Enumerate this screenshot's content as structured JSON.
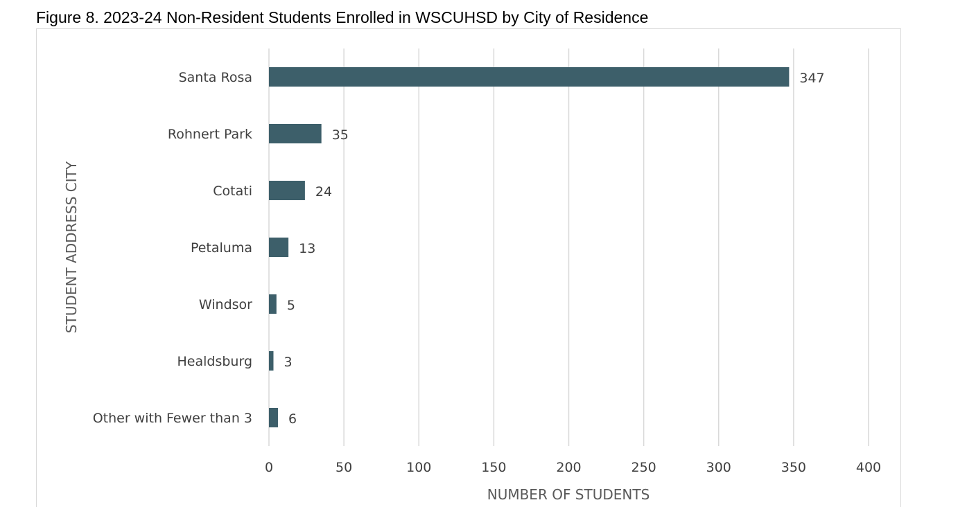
{
  "figure": {
    "title": "Figure 8. 2023-24 Non-Resident Students Enrolled in WSCUHSD by City of Residence"
  },
  "colors": {
    "bar": "#3d5f6a",
    "gridline": "#d9d9d9",
    "label": "#404040",
    "axis_title": "#595959"
  },
  "chart_data": {
    "type": "bar",
    "orientation": "horizontal",
    "title": "Figure 8. 2023-24 Non-Resident Students Enrolled in WSCUHSD by City of Residence",
    "xlabel": "NUMBER OF STUDENTS",
    "ylabel": "STUDENT ADDRESS CITY",
    "categories": [
      "Santa Rosa",
      "Rohnert Park",
      "Cotati",
      "Petaluma",
      "Windsor",
      "Healdsburg",
      "Other with Fewer than 3"
    ],
    "values": [
      347,
      35,
      24,
      13,
      5,
      3,
      6
    ],
    "data_labels": [
      "347",
      "35",
      "24",
      "13",
      "5",
      "3",
      "6"
    ],
    "xlim": [
      0,
      400
    ],
    "xticks": [
      0,
      50,
      100,
      150,
      200,
      250,
      300,
      350,
      400
    ],
    "xtick_labels": [
      "0",
      "50",
      "100",
      "150",
      "200",
      "250",
      "300",
      "350",
      "400"
    ],
    "grid": "vertical",
    "legend": "none"
  }
}
